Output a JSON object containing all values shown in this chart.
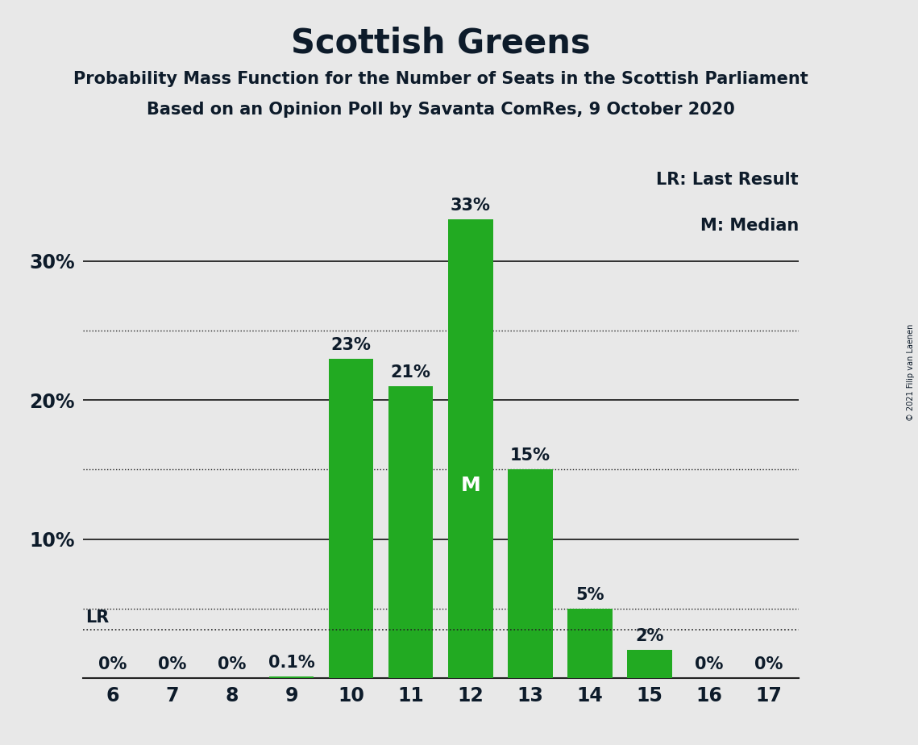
{
  "title": "Scottish Greens",
  "subtitle1": "Probability Mass Function for the Number of Seats in the Scottish Parliament",
  "subtitle2": "Based on an Opinion Poll by Savanta ComRes, 9 October 2020",
  "copyright": "© 2021 Filip van Laenen",
  "categories": [
    6,
    7,
    8,
    9,
    10,
    11,
    12,
    13,
    14,
    15,
    16,
    17
  ],
  "values": [
    0.0,
    0.0,
    0.0,
    0.1,
    23.0,
    21.0,
    33.0,
    15.0,
    5.0,
    2.0,
    0.0,
    0.0
  ],
  "bar_color": "#22aa22",
  "label_color_dark": "#0d1b2a",
  "background_color": "#e8e8e8",
  "grid_color": "#222222",
  "last_result_value": 3.5,
  "median_seat": 12,
  "ylim": [
    0,
    37
  ],
  "solid_yticks": [
    10,
    20,
    30
  ],
  "dotted_yticks": [
    5,
    15,
    25
  ],
  "ytick_labels": [
    "10%",
    "20%",
    "30%"
  ],
  "legend_text1": "LR: Last Result",
  "legend_text2": "M: Median",
  "title_fontsize": 30,
  "subtitle_fontsize": 15,
  "axis_label_fontsize": 17,
  "bar_label_fontsize": 15,
  "legend_fontsize": 15,
  "lr_label_fontsize": 15,
  "median_fontsize": 18
}
